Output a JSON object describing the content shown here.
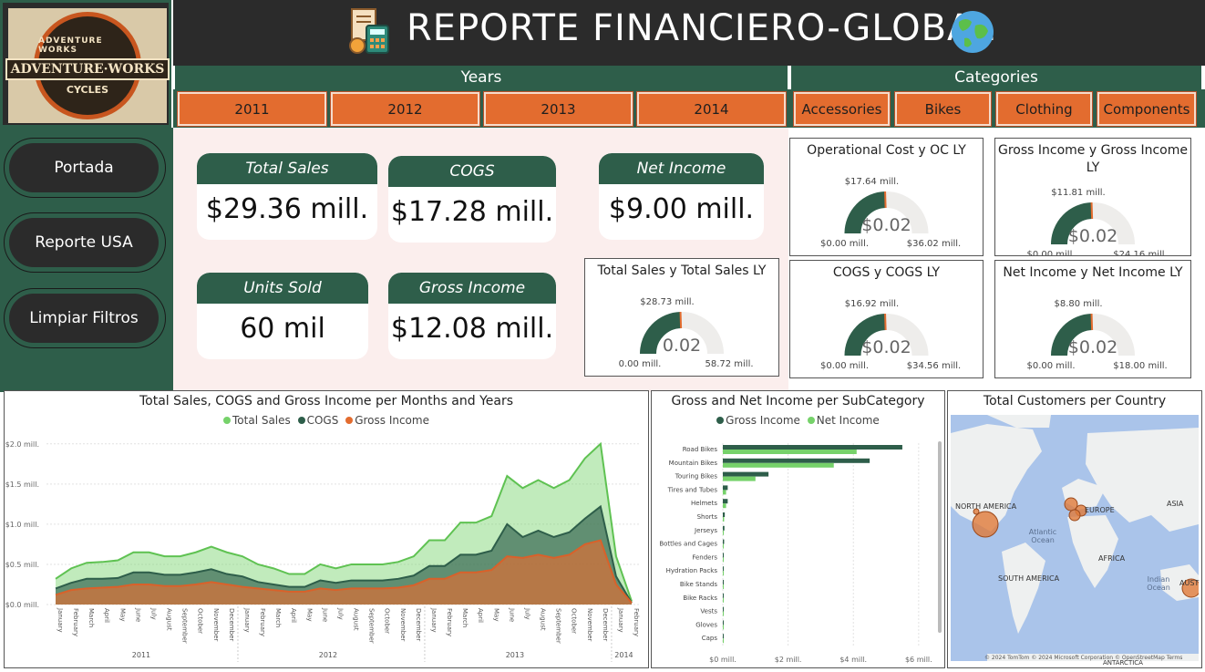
{
  "title": "REPORTE FINANCIERO-GLOBAL",
  "logo": {
    "top": "ADVENTURE WORKS",
    "main": "ADVENTURE·WORKS",
    "bottom": "CYCLES"
  },
  "years": {
    "header": "Years",
    "items": [
      "2011",
      "2012",
      "2013",
      "2014"
    ]
  },
  "categories": {
    "header": "Categories",
    "items": [
      "Accessories",
      "Bikes",
      "Clothing",
      "Components"
    ]
  },
  "nav": {
    "portada": "Portada",
    "reporte": "Reporte USA",
    "limpiar": "Limpiar Filtros"
  },
  "kpis": {
    "total_sales": {
      "label": "Total Sales",
      "value": "$29.36 mill."
    },
    "cogs": {
      "label": "COGS",
      "value": "$17.28 mill."
    },
    "net_income": {
      "label": "Net Income",
      "value": "$9.00 mill."
    },
    "units_sold": {
      "label": "Units Sold",
      "value": "60 mil"
    },
    "gross_income": {
      "label": "Gross Income",
      "value": "$12.08 mill."
    }
  },
  "gauges": [
    {
      "title": "Operational Cost y OC LY",
      "target": "$17.64 mill.",
      "value": "$0.02",
      "min": "$0.00 mill.",
      "max": "$36.02 mill.",
      "fraction": 0.49
    },
    {
      "title": "Gross Income y Gross Income LY",
      "target": "$11.81 mill.",
      "value": "$0.02",
      "min": "$0.00 mill.",
      "max": "$24.16 mill.",
      "fraction": 0.49
    },
    {
      "title": "Total Sales y Total Sales LY",
      "target": "$28.73 mill.",
      "value": "0.02",
      "min": "0.00 mill.",
      "max": "58.72 mill.",
      "fraction": 0.49
    },
    {
      "title": "COGS y COGS LY",
      "target": "$16.92 mill.",
      "value": "$0.02",
      "min": "$0.00 mill.",
      "max": "$34.56 mill.",
      "fraction": 0.49
    },
    {
      "title": "Net Income y Net Income LY",
      "target": "$8.80 mill.",
      "value": "$0.02",
      "min": "$0.00 mill.",
      "max": "$18.00 mill.",
      "fraction": 0.49
    }
  ],
  "colors": {
    "green": "#2e5e4a",
    "light_green": "#76d26a",
    "orange": "#e36c2f",
    "dark": "#2b2b2b"
  },
  "chart_data": [
    {
      "type": "area",
      "title": "Total Sales, COGS and Gross Income per Months and Years",
      "legend": [
        "Total Sales",
        "COGS",
        "Gross Income"
      ],
      "y_ticks": [
        "$0.0 mill.",
        "$0.5 mill.",
        "$1.0 mill.",
        "$1.5 mill.",
        "$2.0 mill."
      ],
      "ylim": [
        0,
        2.1
      ],
      "x_months": [
        "January",
        "February",
        "March",
        "April",
        "May",
        "June",
        "July",
        "August",
        "September",
        "October",
        "November",
        "December",
        "January",
        "February",
        "March",
        "April",
        "May",
        "June",
        "July",
        "August",
        "September",
        "October",
        "November",
        "December",
        "January",
        "February",
        "March",
        "April",
        "May",
        "June",
        "July",
        "August",
        "September",
        "October",
        "November",
        "December",
        "January",
        "February"
      ],
      "x_years": [
        {
          "label": "2011",
          "span": 12
        },
        {
          "label": "2012",
          "span": 12
        },
        {
          "label": "2013",
          "span": 12
        },
        {
          "label": "2014",
          "span": 2
        }
      ],
      "series": [
        {
          "name": "Total Sales",
          "values": [
            0.32,
            0.45,
            0.52,
            0.53,
            0.55,
            0.65,
            0.65,
            0.6,
            0.6,
            0.65,
            0.72,
            0.65,
            0.6,
            0.5,
            0.45,
            0.38,
            0.38,
            0.5,
            0.45,
            0.5,
            0.5,
            0.5,
            0.53,
            0.6,
            0.8,
            0.8,
            1.02,
            1.02,
            1.1,
            1.6,
            1.45,
            1.55,
            1.45,
            1.55,
            1.82,
            2.0,
            0.6,
            0.04
          ]
        },
        {
          "name": "COGS",
          "values": [
            0.2,
            0.27,
            0.32,
            0.32,
            0.33,
            0.4,
            0.4,
            0.37,
            0.37,
            0.4,
            0.44,
            0.38,
            0.35,
            0.28,
            0.25,
            0.22,
            0.22,
            0.3,
            0.27,
            0.3,
            0.3,
            0.3,
            0.32,
            0.36,
            0.48,
            0.48,
            0.62,
            0.62,
            0.67,
            1.0,
            0.84,
            0.92,
            0.84,
            0.9,
            1.07,
            1.22,
            0.35,
            0.02
          ]
        },
        {
          "name": "Gross Income",
          "values": [
            0.12,
            0.18,
            0.2,
            0.21,
            0.22,
            0.25,
            0.25,
            0.23,
            0.23,
            0.25,
            0.28,
            0.25,
            0.22,
            0.2,
            0.18,
            0.16,
            0.16,
            0.2,
            0.18,
            0.2,
            0.2,
            0.2,
            0.21,
            0.24,
            0.32,
            0.32,
            0.4,
            0.4,
            0.43,
            0.6,
            0.58,
            0.62,
            0.58,
            0.62,
            0.75,
            0.8,
            0.25,
            0.02
          ]
        }
      ]
    },
    {
      "type": "bar",
      "title": "Gross and Net Income per SubCategory",
      "legend": [
        "Gross Income",
        "Net Income"
      ],
      "categories": [
        "Road Bikes",
        "Mountain Bikes",
        "Touring Bikes",
        "Tires and Tubes",
        "Helmets",
        "Shorts",
        "Jerseys",
        "Bottles and Cages",
        "Fenders",
        "Hydration Packs",
        "Bike Stands",
        "Bike Racks",
        "Vests",
        "Gloves",
        "Caps"
      ],
      "x_ticks": [
        "$0 mill.",
        "$2 mill.",
        "$4 mill.",
        "$6 mill."
      ],
      "xlim": [
        0,
        6.2
      ],
      "series": [
        {
          "name": "Gross Income",
          "values": [
            5.5,
            4.5,
            1.4,
            0.15,
            0.15,
            0.06,
            0.05,
            0.04,
            0.03,
            0.02,
            0.02,
            0.02,
            0.02,
            0.02,
            0.01
          ]
        },
        {
          "name": "Net Income",
          "values": [
            4.1,
            3.4,
            1.0,
            0.1,
            0.1,
            0.04,
            0.03,
            0.02,
            0.02,
            0.01,
            0.01,
            0.01,
            0.01,
            0.01,
            0.01
          ]
        }
      ]
    }
  ],
  "map": {
    "title": "Total Customers per Country",
    "labels": [
      "NORTH AMERICA",
      "EUROPE",
      "ASIA",
      "Atlantic Ocean",
      "AFRICA",
      "SOUTH AMERICA",
      "Indian Ocean",
      "AUST",
      "ANTARCTICA"
    ],
    "footer": "© 2024 TomTom © 2024 Microsoft Corporation © OpenStreetMap Terms"
  }
}
